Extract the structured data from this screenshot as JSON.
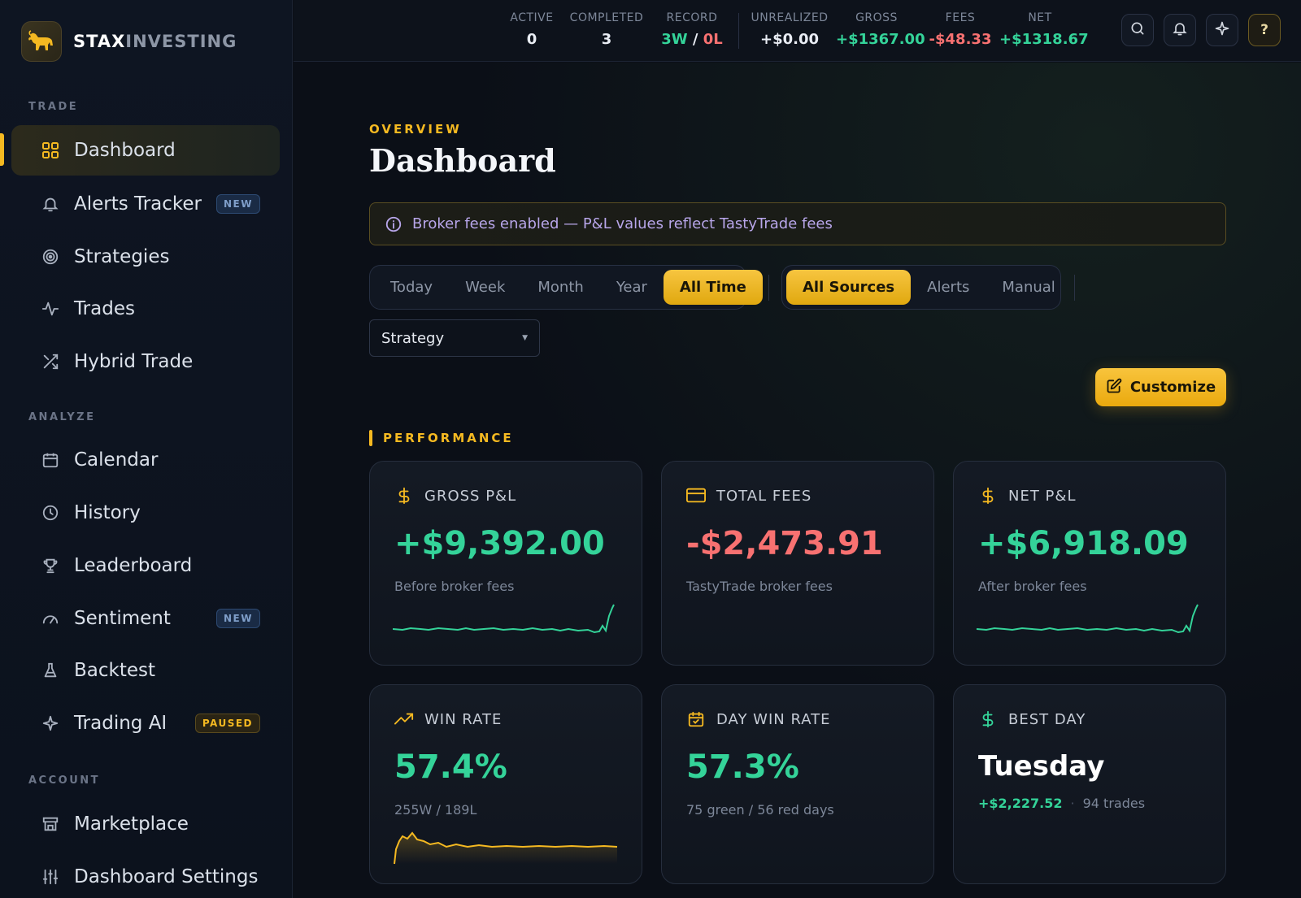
{
  "brand": {
    "name_a": "STAX",
    "name_b": "INVESTING",
    "logo_icon": "bull-icon"
  },
  "sidebar": {
    "sections": {
      "trade": "TRADE",
      "analyze": "ANALYZE",
      "account": "ACCOUNT"
    },
    "items": [
      {
        "label": "Dashboard",
        "icon": "grid-icon",
        "active": true
      },
      {
        "label": "Alerts Tracker",
        "icon": "bell-icon",
        "badge": "NEW"
      },
      {
        "label": "Strategies",
        "icon": "target-icon"
      },
      {
        "label": "Trades",
        "icon": "activity-icon"
      },
      {
        "label": "Hybrid Trade",
        "icon": "shuffle-icon"
      },
      {
        "label": "Calendar",
        "icon": "calendar-icon"
      },
      {
        "label": "History",
        "icon": "clock-icon"
      },
      {
        "label": "Leaderboard",
        "icon": "trophy-icon"
      },
      {
        "label": "Sentiment",
        "icon": "gauge-icon",
        "badge": "NEW"
      },
      {
        "label": "Backtest",
        "icon": "flask-icon"
      },
      {
        "label": "Trading AI",
        "icon": "sparkle-icon",
        "badge": "PAUSED"
      },
      {
        "label": "Marketplace",
        "icon": "store-icon"
      },
      {
        "label": "Dashboard Settings",
        "icon": "sliders-icon"
      }
    ]
  },
  "topbar": {
    "active": {
      "label": "ACTIVE",
      "value": "0"
    },
    "completed": {
      "label": "COMPLETED",
      "value": "3"
    },
    "record": {
      "label": "RECORD",
      "wins": "3W",
      "sep": "/",
      "losses": "0L"
    },
    "unrealized": {
      "label": "UNREALIZED",
      "value": "+$0.00"
    },
    "gross": {
      "label": "GROSS",
      "value": "+$1367.00"
    },
    "fees": {
      "label": "FEES",
      "value": "-$48.33"
    },
    "net": {
      "label": "NET",
      "value": "+$1318.67"
    },
    "help_label": "?"
  },
  "main": {
    "kicker": "OVERVIEW",
    "title": "Dashboard",
    "banner": "Broker fees enabled — P&L values reflect TastyTrade fees",
    "time_filters": [
      "Today",
      "Week",
      "Month",
      "Year",
      "All Time"
    ],
    "time_selected": "All Time",
    "source_filters": [
      "All Sources",
      "Alerts",
      "Manual"
    ],
    "source_selected": "All Sources",
    "strategy_select": {
      "value": "Strategy"
    },
    "customize_label": "Customize",
    "performance_title": "PERFORMANCE"
  },
  "cards": {
    "gross": {
      "title": "GROSS P&L",
      "value": "+$9,392.00",
      "sub": "Before broker fees",
      "icon": "dollar-icon"
    },
    "fees": {
      "title": "TOTAL FEES",
      "value": "-$2,473.91",
      "sub": "TastyTrade broker fees",
      "icon": "credit-card-icon"
    },
    "net": {
      "title": "NET P&L",
      "value": "+$6,918.09",
      "sub": "After broker fees",
      "icon": "dollar-icon"
    },
    "win_rate": {
      "title": "WIN RATE",
      "value": "57.4%",
      "sub": "255W / 189L",
      "icon": "trending-up-icon"
    },
    "day_win_rate": {
      "title": "DAY WIN RATE",
      "value": "57.3%",
      "sub": "75 green / 56 red days",
      "icon": "calendar-check-icon"
    },
    "best_day": {
      "title": "BEST DAY",
      "value": "Tuesday",
      "amount": "+$2,227.52",
      "dot": "·",
      "trades": "94 trades",
      "icon": "dollar-icon"
    }
  },
  "colors": {
    "accent": "#f5b921",
    "positive": "#34d399",
    "negative": "#f87171",
    "banner_text": "#b8a6ea"
  }
}
